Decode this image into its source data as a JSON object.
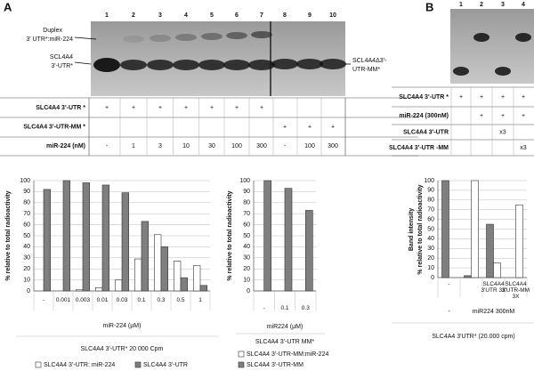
{
  "figure": {
    "panel_a": "A",
    "panel_b": "B",
    "gel_a": {
      "lanes": [
        "1",
        "2",
        "3",
        "4",
        "5",
        "6",
        "7",
        "8",
        "9",
        "10"
      ],
      "left_labels": [
        "Duplex",
        "3' UTR*:miR-224",
        "SCL4A4",
        "3'-UTR*"
      ],
      "right_labels": [
        "SCL4A4Δ3'-",
        "UTR-MM*"
      ]
    },
    "table_a": {
      "rows": [
        {
          "label": "SLC4A4 3'-UTR *",
          "cells": [
            "+",
            "+",
            "+",
            "+",
            "+",
            "+",
            "+",
            null,
            null,
            null
          ]
        },
        {
          "label": "SLC4A4 3'-UTR-MM *",
          "cells": [
            null,
            null,
            null,
            null,
            null,
            null,
            null,
            "+",
            "+",
            "+"
          ]
        },
        {
          "label": "miR-224 (nM)",
          "cells": [
            "-",
            "1",
            "3",
            "10",
            "30",
            "100",
            "300",
            "-",
            "100",
            "300"
          ]
        }
      ]
    },
    "gel_b": {
      "lanes": [
        "1",
        "2",
        "3",
        "4"
      ]
    },
    "table_b": {
      "rows": [
        {
          "label": "SLC4A4 3'-UTR *",
          "cells": [
            "+",
            "+",
            "+",
            "+"
          ]
        },
        {
          "label": "miR-224 (300nM)",
          "cells": [
            null,
            "+",
            "+",
            "+"
          ]
        },
        {
          "label": "SLC4A4 3'-UTR",
          "cells": [
            null,
            null,
            "x3",
            null
          ]
        },
        {
          "label": "SLC4A4 3'-UTR -MM",
          "cells": [
            null,
            null,
            null,
            "x3"
          ]
        }
      ]
    }
  },
  "chart_data": [
    {
      "type": "bar",
      "ylabel": [
        "% relative to total radioactivity"
      ],
      "xlabel": "miR-224 (μM)",
      "group_label": "SLC4A4 3'-UTR* 20 000 Cpm",
      "categories": [
        "-",
        "0.001",
        "0.003",
        "0.01",
        "0.03",
        "0.1",
        "0.3",
        "0.5",
        "1"
      ],
      "series": [
        {
          "name": "SLC4A4 3'-UTR: miR-224",
          "color": "#ffffff",
          "values": [
            0,
            0,
            1,
            3,
            10,
            29,
            51,
            27,
            23
          ]
        },
        {
          "name": "SLC4A4 3'-UTR",
          "color": "#7f7f7f",
          "values": [
            92,
            100,
            98,
            96,
            89,
            63,
            40,
            12,
            5
          ]
        }
      ],
      "ylim": [
        0,
        100
      ],
      "yticks": [
        0,
        10,
        20,
        30,
        40,
        50,
        60,
        70,
        80,
        90,
        100
      ],
      "grid": true,
      "legend": "bottom"
    },
    {
      "type": "bar",
      "ylabel": [
        "% relative to total radioactivity"
      ],
      "xlabel": "miR224 (μM)",
      "group_label": "SLC4A4 3'-UTR MM*",
      "categories": [
        "-",
        "0.1",
        "0.3"
      ],
      "series": [
        {
          "name": "SLC4A4 3'-UTR-MM:miR-224",
          "color": "#ffffff",
          "values": [
            0,
            0,
            0
          ]
        },
        {
          "name": "SLC4A4 3'-UTR-MM",
          "color": "#7f7f7f",
          "values": [
            100,
            93,
            73
          ]
        }
      ],
      "ylim": [
        0,
        100
      ],
      "yticks": [
        0,
        10,
        20,
        30,
        40,
        50,
        60,
        70,
        80,
        90,
        100
      ],
      "grid": true,
      "legend": "bottom"
    },
    {
      "type": "bar",
      "ylabel": [
        "Band intensity",
        "% relative to total radioactivity"
      ],
      "xlabel": "miR224 300nM",
      "xlabel_left": "-",
      "group_label": "SLC4A4 3'UTR* (20.000 cpm)",
      "categories": [
        "-",
        null,
        "SLC4A4 3'UTR 3X",
        "SLC4A4 3'UTR-MM 3X"
      ],
      "series": [
        {
          "color": "#7f7f7f",
          "values": [
            100,
            2,
            55,
            0
          ]
        },
        {
          "color": "#ffffff",
          "values": [
            0,
            100,
            15,
            75
          ]
        }
      ],
      "ylim": [
        0,
        100
      ],
      "yticks": [
        0,
        10,
        20,
        30,
        40,
        50,
        60,
        70,
        80,
        90,
        100
      ],
      "grid": true
    }
  ]
}
